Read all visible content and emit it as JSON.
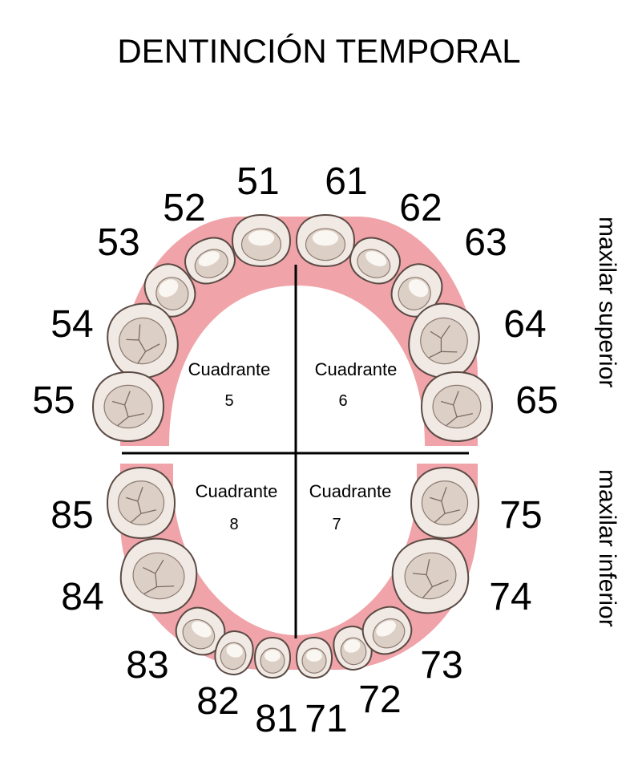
{
  "title": "DENTINCIÓN TEMPORAL",
  "jaw_labels": {
    "upper": "maxilar superior",
    "lower": "maxilar inferior"
  },
  "quadrants": [
    {
      "label": "Cuadrante",
      "number": "5"
    },
    {
      "label": "Cuadrante",
      "number": "6"
    },
    {
      "label": "Cuadrante",
      "number": "8"
    },
    {
      "label": "Cuadrante",
      "number": "7"
    }
  ],
  "teeth": {
    "upper_right": [
      "51",
      "52",
      "53",
      "54",
      "55"
    ],
    "upper_left": [
      "61",
      "62",
      "63",
      "64",
      "65"
    ],
    "lower_right": [
      "81",
      "82",
      "83",
      "84",
      "85"
    ],
    "lower_left": [
      "71",
      "72",
      "73",
      "74",
      "75"
    ]
  },
  "colors": {
    "gum": "#f0a3a8",
    "tooth_fill": "#f1e9e3",
    "tooth_shade": "#dcd0c6",
    "tooth_outline": "#5a4a44",
    "line": "#000000"
  }
}
